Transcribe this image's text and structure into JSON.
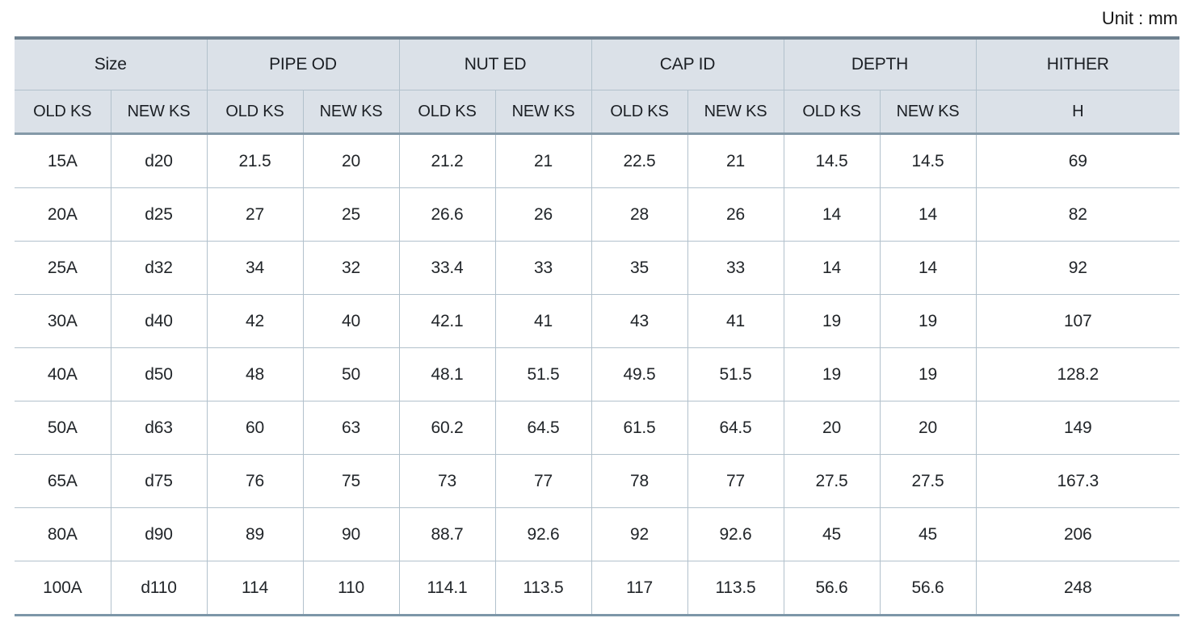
{
  "unit_label": "Unit : mm",
  "table": {
    "column_groups": [
      {
        "label": "Size",
        "span": 2
      },
      {
        "label": "PIPE OD",
        "span": 2
      },
      {
        "label": "NUT ED",
        "span": 2
      },
      {
        "label": "CAP ID",
        "span": 2
      },
      {
        "label": "DEPTH",
        "span": 2
      },
      {
        "label": "HITHER",
        "span": 1
      }
    ],
    "sub_headers": [
      "OLD KS",
      "NEW KS",
      "OLD KS",
      "NEW KS",
      "OLD KS",
      "NEW KS",
      "OLD KS",
      "NEW KS",
      "OLD KS",
      "NEW KS",
      "H"
    ],
    "rows": [
      [
        "15A",
        "d20",
        "21.5",
        "20",
        "21.2",
        "21",
        "22.5",
        "21",
        "14.5",
        "14.5",
        "69"
      ],
      [
        "20A",
        "d25",
        "27",
        "25",
        "26.6",
        "26",
        "28",
        "26",
        "14",
        "14",
        "82"
      ],
      [
        "25A",
        "d32",
        "34",
        "32",
        "33.4",
        "33",
        "35",
        "33",
        "14",
        "14",
        "92"
      ],
      [
        "30A",
        "d40",
        "42",
        "40",
        "42.1",
        "41",
        "43",
        "41",
        "19",
        "19",
        "107"
      ],
      [
        "40A",
        "d50",
        "48",
        "50",
        "48.1",
        "51.5",
        "49.5",
        "51.5",
        "19",
        "19",
        "128.2"
      ],
      [
        "50A",
        "d63",
        "60",
        "63",
        "60.2",
        "64.5",
        "61.5",
        "64.5",
        "20",
        "20",
        "149"
      ],
      [
        "65A",
        "d75",
        "76",
        "75",
        "73",
        "77",
        "78",
        "77",
        "27.5",
        "27.5",
        "167.3"
      ],
      [
        "80A",
        "d90",
        "89",
        "90",
        "88.7",
        "92.6",
        "92",
        "92.6",
        "45",
        "45",
        "206"
      ],
      [
        "100A",
        "d110",
        "114",
        "110",
        "114.1",
        "113.5",
        "117",
        "113.5",
        "56.6",
        "56.6",
        "248"
      ]
    ],
    "colors": {
      "header_background": "#dbe1e8",
      "inner_border": "#b2c1cc",
      "top_border": "#6f818f",
      "bottom_border": "#7d96a8",
      "header_separator": "#8499a8",
      "text": "#212529"
    }
  }
}
